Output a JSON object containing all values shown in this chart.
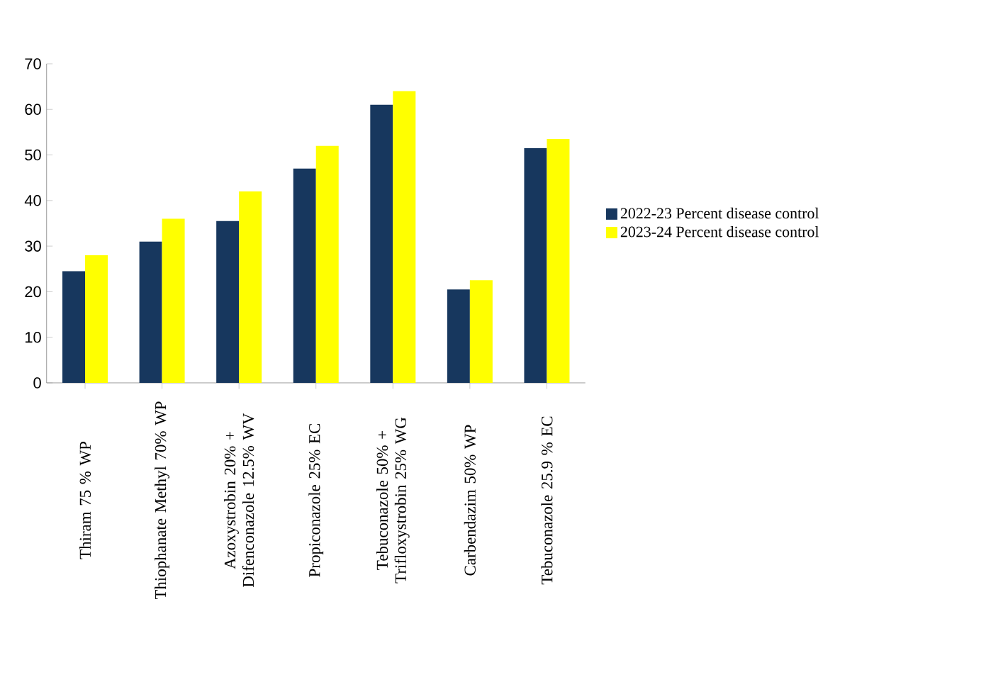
{
  "chart_data": {
    "type": "bar",
    "categories": [
      "Thiram 75 % WP",
      "Thiophanate Methyl 70% WP",
      "Azoxystrobin 20% + Difenconazole 12.5% WV",
      "Propiconazole 25% EC",
      "Tebuconazole 50% + Trifloxystrobin 25% WG",
      "Carbendazim 50% WP",
      "Tebuconazole 25.9 % EC"
    ],
    "series": [
      {
        "name": "2022-23 Percent disease control",
        "color": "#17375e",
        "values": [
          24.5,
          31,
          35.5,
          47,
          61,
          20.5,
          51.5
        ]
      },
      {
        "name": "2023-24 Percent disease control",
        "color": "#ffff00",
        "values": [
          28,
          36,
          42,
          52,
          64,
          22.5,
          53.5
        ]
      }
    ],
    "ylim": [
      0,
      70
    ],
    "yticks": [
      0,
      10,
      20,
      30,
      40,
      50,
      60,
      70
    ],
    "grid": false,
    "legend": "right"
  }
}
